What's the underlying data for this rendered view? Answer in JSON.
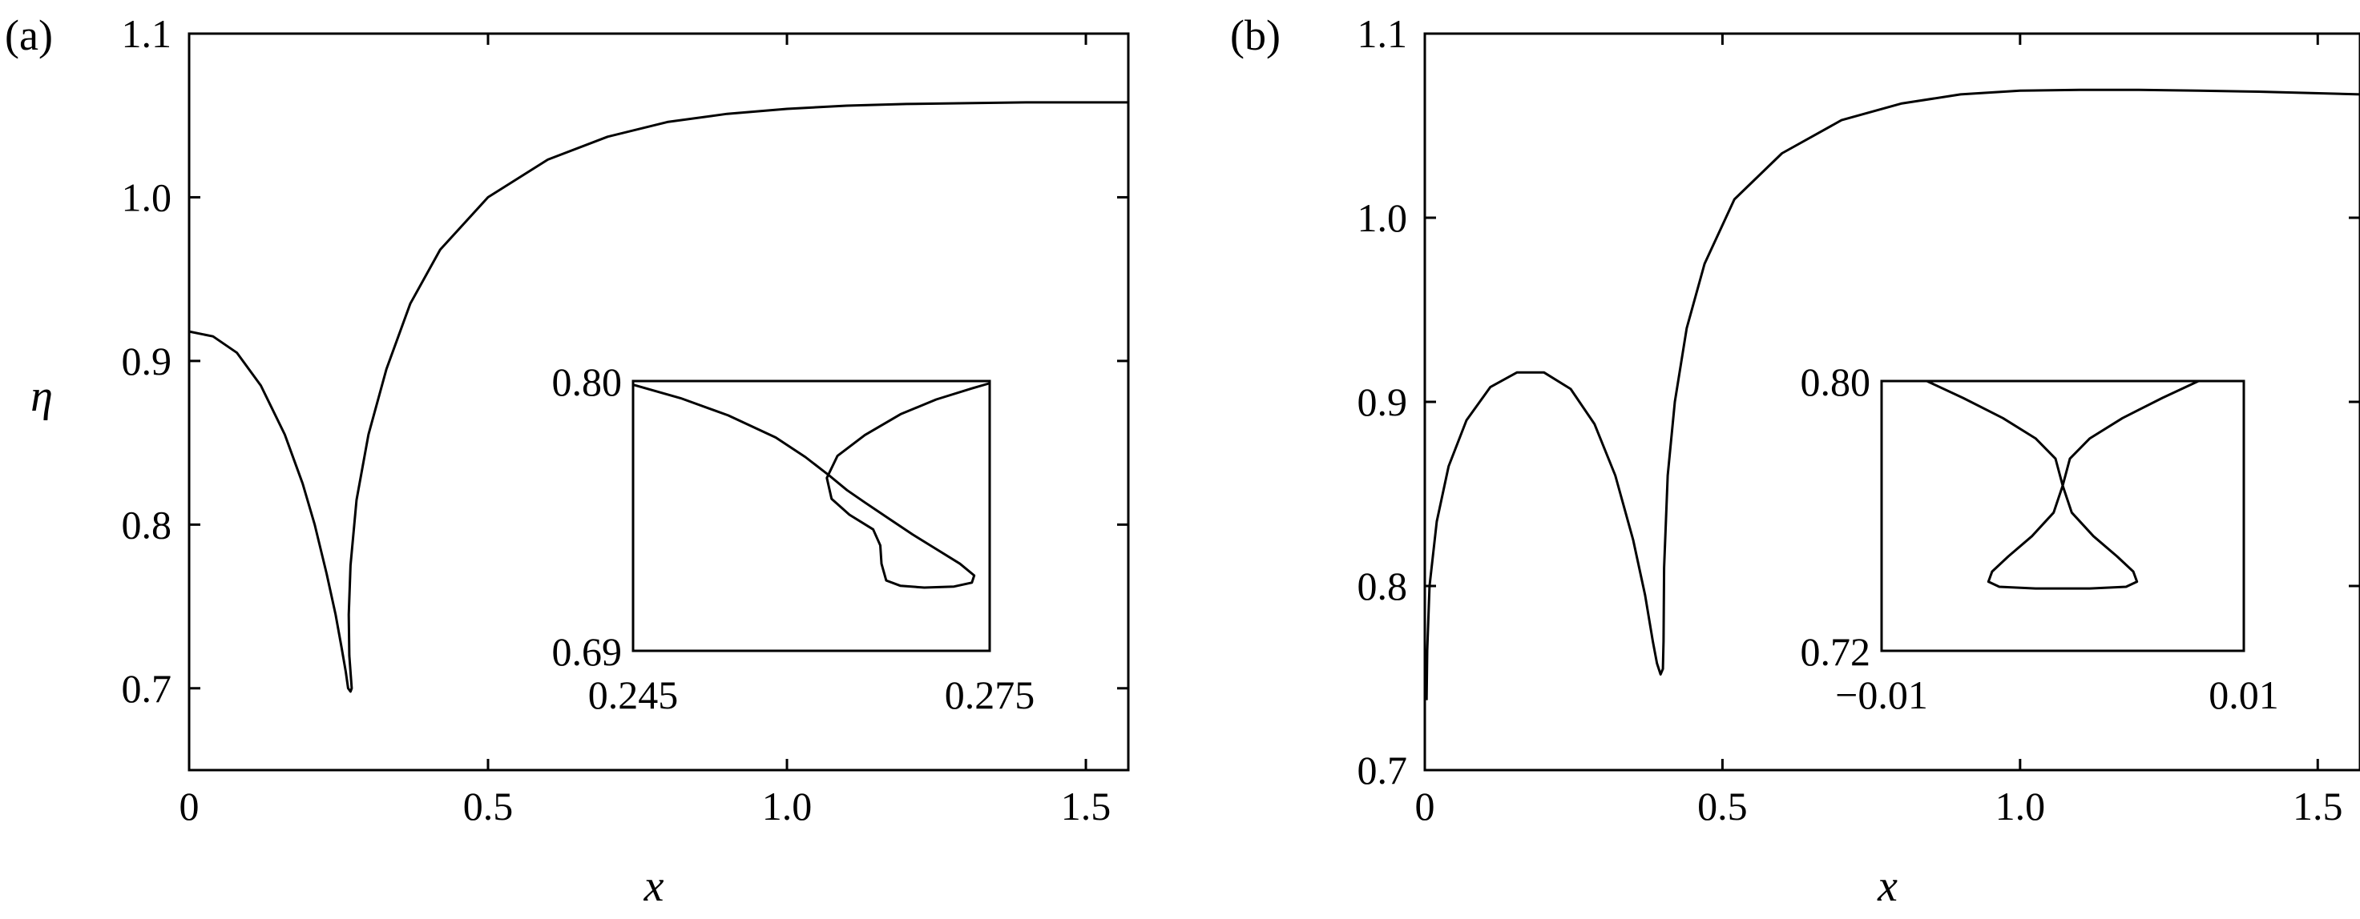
{
  "chart_data": [
    {
      "type": "line",
      "panel_label": "(a)",
      "xlabel": "x",
      "ylabel": "η",
      "xlim": [
        0,
        1.571
      ],
      "ylim": [
        0.65,
        1.1
      ],
      "xticks": [
        0,
        0.5,
        1.0,
        1.5
      ],
      "xtick_labels": [
        "0",
        "0.5",
        "1.0",
        "1.5"
      ],
      "yticks": [
        0.7,
        0.8,
        0.9,
        1.0,
        1.1
      ],
      "ytick_labels": [
        "0.7",
        "0.8",
        "0.9",
        "1.0",
        "1.1"
      ],
      "grid": false,
      "series": [
        {
          "points": [
            [
              0,
              0.918
            ],
            [
              0.04,
              0.915
            ],
            [
              0.08,
              0.905
            ],
            [
              0.12,
              0.885
            ],
            [
              0.16,
              0.855
            ],
            [
              0.19,
              0.825
            ],
            [
              0.21,
              0.8
            ],
            [
              0.23,
              0.77
            ],
            [
              0.245,
              0.745
            ],
            [
              0.255,
              0.725
            ],
            [
              0.262,
              0.71
            ],
            [
              0.266,
              0.7
            ],
            [
              0.27,
              0.698
            ],
            [
              0.272,
              0.7
            ],
            [
              0.268,
              0.72
            ],
            [
              0.267,
              0.745
            ],
            [
              0.27,
              0.775
            ],
            [
              0.28,
              0.815
            ],
            [
              0.3,
              0.855
            ],
            [
              0.33,
              0.895
            ],
            [
              0.37,
              0.935
            ],
            [
              0.42,
              0.968
            ],
            [
              0.5,
              1.0
            ],
            [
              0.6,
              1.023
            ],
            [
              0.7,
              1.037
            ],
            [
              0.8,
              1.046
            ],
            [
              0.9,
              1.051
            ],
            [
              1.0,
              1.054
            ],
            [
              1.1,
              1.056
            ],
            [
              1.2,
              1.057
            ],
            [
              1.3,
              1.0575
            ],
            [
              1.4,
              1.058
            ],
            [
              1.571,
              1.058
            ]
          ]
        }
      ],
      "inset": {
        "xlim": [
          0.245,
          0.275
        ],
        "ylim": [
          0.69,
          0.8
        ],
        "xtick_labels": [
          "0.245",
          "0.275"
        ],
        "ytick_labels": [
          "0.69",
          "0.80"
        ],
        "series": [
          {
            "points": [
              [
                0.245,
                0.7985
              ],
              [
                0.249,
                0.793
              ],
              [
                0.253,
                0.786
              ],
              [
                0.257,
                0.777
              ],
              [
                0.2595,
                0.769
              ],
              [
                0.2615,
                0.7615
              ],
              [
                0.263,
                0.7555
              ],
              [
                0.2645,
                0.7505
              ],
              [
                0.2665,
                0.744
              ],
              [
                0.2685,
                0.7375
              ],
              [
                0.2705,
                0.7315
              ],
              [
                0.2725,
                0.7255
              ],
              [
                0.2737,
                0.7207
              ],
              [
                0.2735,
                0.7178
              ],
              [
                0.272,
                0.7162
              ],
              [
                0.2695,
                0.7158
              ],
              [
                0.2675,
                0.7165
              ],
              [
                0.2663,
                0.7187
              ],
              [
                0.2659,
                0.7255
              ],
              [
                0.2658,
                0.733
              ],
              [
                0.2652,
                0.7395
              ],
              [
                0.2632,
                0.7455
              ],
              [
                0.2617,
                0.752
              ],
              [
                0.2613,
                0.7605
              ],
              [
                0.2622,
                0.7695
              ],
              [
                0.2645,
                0.778
              ],
              [
                0.2675,
                0.7865
              ],
              [
                0.2705,
                0.7925
              ],
              [
                0.2735,
                0.797
              ],
              [
                0.2755,
                0.7998
              ]
            ]
          }
        ]
      }
    },
    {
      "type": "line",
      "panel_label": "(b)",
      "xlabel": "x",
      "xlim": [
        0,
        1.571
      ],
      "ylim": [
        0.7,
        1.1
      ],
      "xticks": [
        0,
        0.5,
        1.0,
        1.5
      ],
      "xtick_labels": [
        "0",
        "0.5",
        "1.0",
        "1.5"
      ],
      "yticks": [
        0.7,
        0.8,
        0.9,
        1.0,
        1.1
      ],
      "ytick_labels": [
        "0.7",
        "0.8",
        "0.9",
        "1.0",
        "1.1"
      ],
      "grid": false,
      "series": [
        {
          "points": [
            [
              0.003,
              0.738
            ],
            [
              0.004,
              0.765
            ],
            [
              0.008,
              0.8
            ],
            [
              0.02,
              0.835
            ],
            [
              0.04,
              0.865
            ],
            [
              0.07,
              0.89
            ],
            [
              0.11,
              0.908
            ],
            [
              0.155,
              0.916
            ],
            [
              0.2,
              0.916
            ],
            [
              0.245,
              0.907
            ],
            [
              0.285,
              0.888
            ],
            [
              0.32,
              0.86
            ],
            [
              0.35,
              0.825
            ],
            [
              0.37,
              0.795
            ],
            [
              0.383,
              0.77
            ],
            [
              0.39,
              0.758
            ],
            [
              0.396,
              0.752
            ],
            [
              0.4,
              0.755
            ],
            [
              0.401,
              0.77
            ],
            [
              0.402,
              0.81
            ],
            [
              0.408,
              0.86
            ],
            [
              0.42,
              0.9
            ],
            [
              0.44,
              0.94
            ],
            [
              0.47,
              0.975
            ],
            [
              0.52,
              1.01
            ],
            [
              0.6,
              1.035
            ],
            [
              0.7,
              1.053
            ],
            [
              0.8,
              1.062
            ],
            [
              0.9,
              1.067
            ],
            [
              1.0,
              1.069
            ],
            [
              1.1,
              1.0695
            ],
            [
              1.2,
              1.0695
            ],
            [
              1.3,
              1.069
            ],
            [
              1.4,
              1.0685
            ],
            [
              1.571,
              1.067
            ]
          ]
        }
      ],
      "inset": {
        "xlim": [
          -0.01,
          0.01
        ],
        "ylim": [
          0.72,
          0.8
        ],
        "xtick_labels": [
          "−0.01",
          "0.01"
        ],
        "ytick_labels": [
          "0.72",
          "0.80"
        ],
        "series": [
          {
            "points": [
              [
                -0.0075,
                0.8
              ],
              [
                -0.0055,
                0.795
              ],
              [
                -0.0033,
                0.789
              ],
              [
                -0.0015,
                0.783
              ],
              [
                -0.0004,
                0.777
              ],
              [
                0,
                0.769
              ],
              [
                -0.0005,
                0.761
              ],
              [
                -0.0017,
                0.754
              ],
              [
                -0.003,
                0.748
              ],
              [
                -0.0039,
                0.7435
              ],
              [
                -0.0041,
                0.7405
              ],
              [
                -0.0035,
                0.739
              ],
              [
                -0.0015,
                0.7385
              ],
              [
                0.0015,
                0.7385
              ],
              [
                0.0035,
                0.739
              ],
              [
                0.0041,
                0.7405
              ],
              [
                0.0039,
                0.7435
              ],
              [
                0.003,
                0.748
              ],
              [
                0.0017,
                0.754
              ],
              [
                0.0005,
                0.761
              ],
              [
                0,
                0.769
              ],
              [
                0.0004,
                0.777
              ],
              [
                0.0015,
                0.783
              ],
              [
                0.0033,
                0.789
              ],
              [
                0.0055,
                0.795
              ],
              [
                0.0075,
                0.8
              ]
            ]
          }
        ]
      }
    }
  ]
}
